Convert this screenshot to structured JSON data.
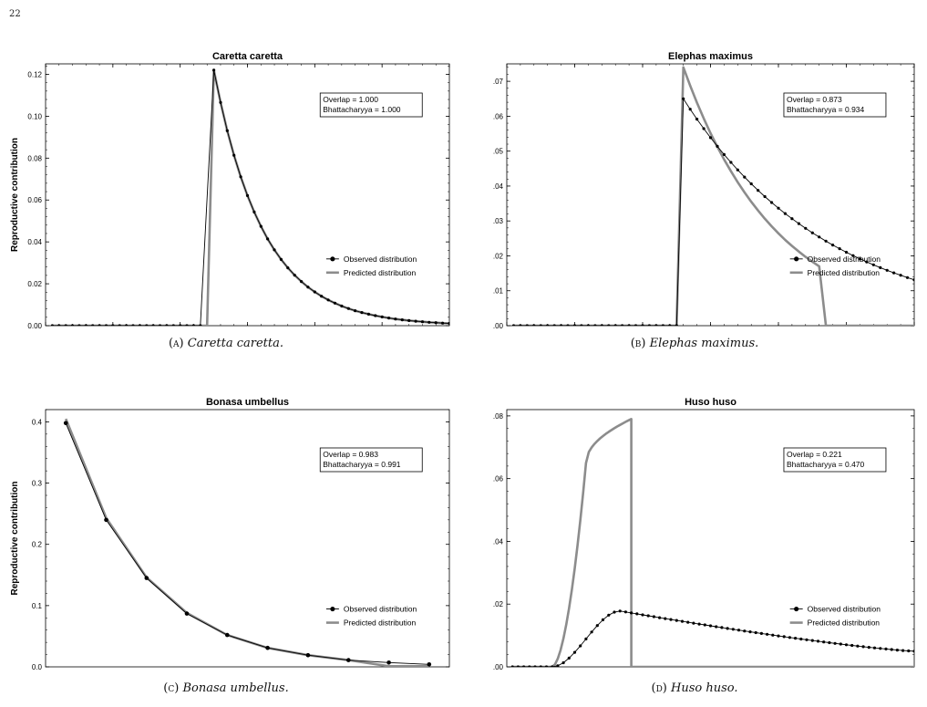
{
  "page_number": "22",
  "chart_data": [
    {
      "type": "line",
      "title": "Caretta caretta",
      "caption_label": "(a)",
      "caption_species": "Caretta caretta.",
      "ylabel": "Reproductive contribution",
      "xlabel": "",
      "xlim": [
        0,
        60
      ],
      "ylim": [
        0,
        0.125
      ],
      "x_ticks": [
        "10",
        "20",
        "30",
        "40",
        "50",
        "60"
      ],
      "y_ticks": [
        "0.00",
        "0.02",
        "0.04",
        "0.06",
        "0.08",
        "0.10",
        "0.12"
      ],
      "y_tick_values": [
        0,
        0.02,
        0.04,
        0.06,
        0.08,
        0.1,
        0.12
      ],
      "stats": [
        "Overlap = 1.000",
        "Bhattacharyya = 1.000"
      ],
      "legend": [
        "Observed distribution",
        "Predicted distribution"
      ],
      "legend_position": "right",
      "series": [
        {
          "kind": "observed",
          "zero_until": 23,
          "start": 25,
          "end": 60,
          "peak": 0.122,
          "decay": 0.1
        },
        {
          "kind": "predicted",
          "zero_until": 24,
          "start": 25,
          "end": 60,
          "peak": 0.122,
          "decay": 0.1
        }
      ]
    },
    {
      "type": "line",
      "title": "Elephas maximus",
      "caption_label": "(b)",
      "caption_species": "Elephas maximus.",
      "ylabel": "",
      "xlabel": "",
      "xlim": [
        0,
        60
      ],
      "ylim": [
        0,
        0.075
      ],
      "x_ticks": [
        "10",
        "20",
        "30",
        "40",
        "50",
        "60"
      ],
      "y_ticks": [
        ".00",
        ".01",
        ".02",
        ".03",
        ".04",
        ".05",
        ".06",
        ".07"
      ],
      "y_tick_values": [
        0,
        0.01,
        0.02,
        0.03,
        0.04,
        0.05,
        0.06,
        0.07
      ],
      "stats": [
        "Overlap = 0.873",
        "Bhattacharyya = 0.934"
      ],
      "legend": [
        "Observed distribution",
        "Predicted distribution"
      ],
      "legend_position": "right",
      "series": [
        {
          "kind": "observed",
          "zero_until": 25,
          "start": 26,
          "end": 60,
          "peak": 0.065,
          "decay": 0.0585
        },
        {
          "kind": "predicted",
          "zero_until": 25,
          "start": 26,
          "end": 46,
          "peak": 0.074,
          "decay": 0.0505,
          "drop_to_zero_at": 47,
          "tail_end": 60
        }
      ]
    },
    {
      "type": "line",
      "title": "Bonasa umbellus",
      "caption_label": "(c)",
      "caption_species": "Bonasa umbellus.",
      "ylabel": "Reproductive contribution",
      "xlabel": "",
      "xlim": [
        0.5,
        10.5
      ],
      "ylim": [
        0,
        0.42
      ],
      "x_ticks": [],
      "y_ticks": [
        "0.0",
        "0.1",
        "0.2",
        "0.3",
        "0.4"
      ],
      "y_tick_values": [
        0,
        0.1,
        0.2,
        0.3,
        0.4
      ],
      "stats": [
        "Overlap = 0.983",
        "Bhattacharyya = 0.991"
      ],
      "legend": [
        "Observed distribution",
        "Predicted distribution"
      ],
      "legend_position": "right",
      "x": [
        1,
        2,
        3,
        4,
        5,
        6,
        7,
        8,
        9,
        10
      ],
      "series": [
        {
          "kind": "observed",
          "values": [
            0.398,
            0.24,
            0.145,
            0.087,
            0.052,
            0.031,
            0.019,
            0.011,
            0.007,
            0.004
          ]
        },
        {
          "kind": "predicted",
          "values": [
            0.405,
            0.243,
            0.146,
            0.088,
            0.052,
            0.031,
            0.019,
            0.011,
            0.001,
            0.001
          ]
        }
      ]
    },
    {
      "type": "line",
      "title": "Huso huso",
      "caption_label": "(d)",
      "caption_species": "Huso huso.",
      "ylabel": "",
      "xlabel": "",
      "xlim": [
        0,
        72
      ],
      "ylim": [
        0,
        0.082
      ],
      "x_ticks": [],
      "y_ticks": [
        ".00",
        ".02",
        ".04",
        ".06",
        ".08"
      ],
      "y_tick_values": [
        0,
        0.02,
        0.04,
        0.06,
        0.08
      ],
      "stats": [
        "Overlap = 0.221",
        "Bhattacharyya = 0.470"
      ],
      "legend": [
        "Observed distribution",
        "Predicted distribution"
      ],
      "legend_position": "right",
      "series": [
        {
          "kind": "observed",
          "model": "hump",
          "start": 8,
          "end": 72,
          "peak_x": 20,
          "peak": 0.0178,
          "tail": 0.005
        },
        {
          "kind": "predicted",
          "model": "rise",
          "start": 8,
          "knee_x": 14,
          "knee": 0.065,
          "end": 22,
          "peak": 0.079,
          "tail_end": 72
        }
      ]
    }
  ]
}
